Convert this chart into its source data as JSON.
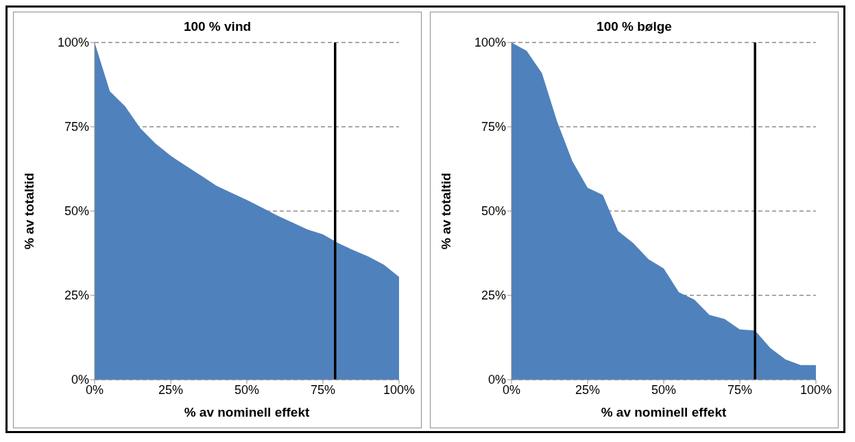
{
  "chart_data": [
    {
      "type": "area",
      "title": "100 % vind",
      "xlabel": "% av nominell effekt",
      "ylabel": "% av totaltid",
      "x": [
        0,
        5,
        10,
        15,
        20,
        25,
        30,
        35,
        40,
        45,
        50,
        55,
        60,
        65,
        70,
        75,
        80,
        85,
        90,
        95,
        100
      ],
      "series": [
        {
          "color": "#4f81bd",
          "values": [
            100,
            85.5,
            81.1,
            74.6,
            70.0,
            66.4,
            63.4,
            60.5,
            57.5,
            55.4,
            53.3,
            51.0,
            48.7,
            46.6,
            44.5,
            43.1,
            40.5,
            38.4,
            36.5,
            34.1,
            30.5
          ]
        }
      ],
      "xlim": [
        0,
        100
      ],
      "xticks": [
        {
          "value": 0,
          "label": "0%"
        },
        {
          "value": 25,
          "label": "25%"
        },
        {
          "value": 50,
          "label": "50%"
        },
        {
          "value": 75,
          "label": "75%"
        },
        {
          "value": 100,
          "label": "100%"
        }
      ],
      "ylim": [
        0,
        100
      ],
      "yticks": [
        {
          "value": 0,
          "label": "0%"
        },
        {
          "value": 25,
          "label": "25%"
        },
        {
          "value": 50,
          "label": "50%"
        },
        {
          "value": 75,
          "label": "75%"
        },
        {
          "value": 100,
          "label": "100%"
        }
      ],
      "grid": "y",
      "ref_lines": [
        {
          "axis": "x",
          "value": 79,
          "color": "#000000"
        }
      ]
    },
    {
      "type": "area",
      "title": "100 % bølge",
      "xlabel": "% av nominell effekt",
      "ylabel": "% av totaltid",
      "x": [
        0,
        5,
        10,
        15,
        20,
        25,
        30,
        35,
        40,
        45,
        50,
        55,
        60,
        65,
        70,
        75,
        80,
        85,
        90,
        95,
        100
      ],
      "series": [
        {
          "color": "#4f81bd",
          "values": [
            100,
            97.5,
            90.9,
            76.5,
            64.8,
            56.9,
            54.8,
            44.1,
            40.5,
            35.7,
            33.0,
            25.9,
            23.8,
            19.2,
            18.0,
            14.9,
            14.6,
            9.4,
            6.0,
            4.3,
            4.3
          ]
        }
      ],
      "xlim": [
        0,
        100
      ],
      "xticks": [
        {
          "value": 0,
          "label": "0%"
        },
        {
          "value": 25,
          "label": "25%"
        },
        {
          "value": 50,
          "label": "50%"
        },
        {
          "value": 75,
          "label": "75%"
        },
        {
          "value": 100,
          "label": "100%"
        }
      ],
      "ylim": [
        0,
        100
      ],
      "yticks": [
        {
          "value": 0,
          "label": "0%"
        },
        {
          "value": 25,
          "label": "25%"
        },
        {
          "value": 50,
          "label": "50%"
        },
        {
          "value": 75,
          "label": "75%"
        },
        {
          "value": 100,
          "label": "100%"
        }
      ],
      "grid": "y",
      "ref_lines": [
        {
          "axis": "x",
          "value": 80,
          "color": "#000000"
        }
      ]
    }
  ]
}
